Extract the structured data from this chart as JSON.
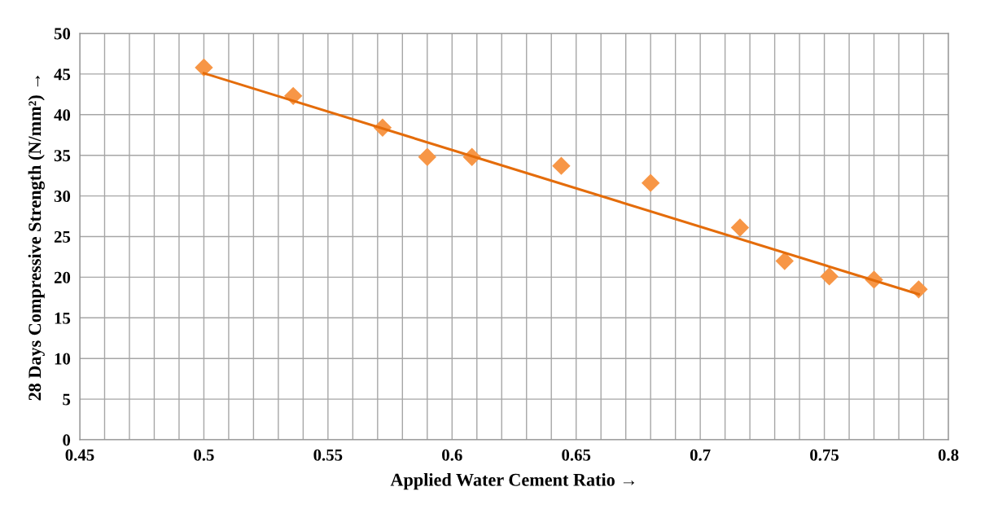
{
  "chart_data": {
    "type": "scatter",
    "xlabel": "Applied Water Cement Ratio →",
    "ylabel": "28 Days Compressive Strength (N/mm²) →",
    "xlim": [
      0.45,
      0.8
    ],
    "ylim": [
      0,
      50
    ],
    "xticks": [
      0.45,
      {
        "value": 0.46,
        "label": null
      },
      {
        "value": 0.47,
        "label": null
      },
      {
        "value": 0.48,
        "label": null
      },
      {
        "value": 0.49,
        "label": null
      },
      0.5,
      {
        "value": 0.51,
        "label": null
      },
      {
        "value": 0.52,
        "label": null
      },
      {
        "value": 0.53,
        "label": null
      },
      {
        "value": 0.54,
        "label": null
      },
      0.55,
      {
        "value": 0.56,
        "label": null
      },
      {
        "value": 0.57,
        "label": null
      },
      {
        "value": 0.58,
        "label": null
      },
      {
        "value": 0.59,
        "label": null
      },
      0.6,
      {
        "value": 0.61,
        "label": null
      },
      {
        "value": 0.62,
        "label": null
      },
      {
        "value": 0.63,
        "label": null
      },
      {
        "value": 0.64,
        "label": null
      },
      0.65,
      {
        "value": 0.66,
        "label": null
      },
      {
        "value": 0.67,
        "label": null
      },
      {
        "value": 0.68,
        "label": null
      },
      {
        "value": 0.69,
        "label": null
      },
      0.7,
      {
        "value": 0.71,
        "label": null
      },
      {
        "value": 0.72,
        "label": null
      },
      {
        "value": 0.73,
        "label": null
      },
      {
        "value": 0.74,
        "label": null
      },
      0.75,
      {
        "value": 0.76,
        "label": null
      },
      {
        "value": 0.77,
        "label": null
      },
      {
        "value": 0.78,
        "label": null
      },
      {
        "value": 0.79,
        "label": null
      },
      0.8
    ],
    "yticks": [
      0,
      5,
      10,
      15,
      20,
      25,
      30,
      35,
      40,
      45,
      50
    ],
    "grid": true,
    "series": [
      {
        "type": "scatter",
        "color": "#f79646",
        "marker": "diamond",
        "x": [
          0.5,
          0.536,
          0.572,
          0.59,
          0.608,
          0.644,
          0.68,
          0.716,
          0.734,
          0.752,
          0.77,
          0.788
        ],
        "values": [
          45.8,
          42.3,
          38.4,
          34.8,
          34.8,
          33.7,
          31.6,
          26.1,
          22.0,
          20.1,
          19.7,
          18.5
        ]
      },
      {
        "type": "line",
        "color": "#e46c0a",
        "marker": "none",
        "line_style": "solid",
        "x": [
          0.5,
          0.788
        ],
        "values": [
          45.1,
          17.9
        ]
      }
    ]
  }
}
